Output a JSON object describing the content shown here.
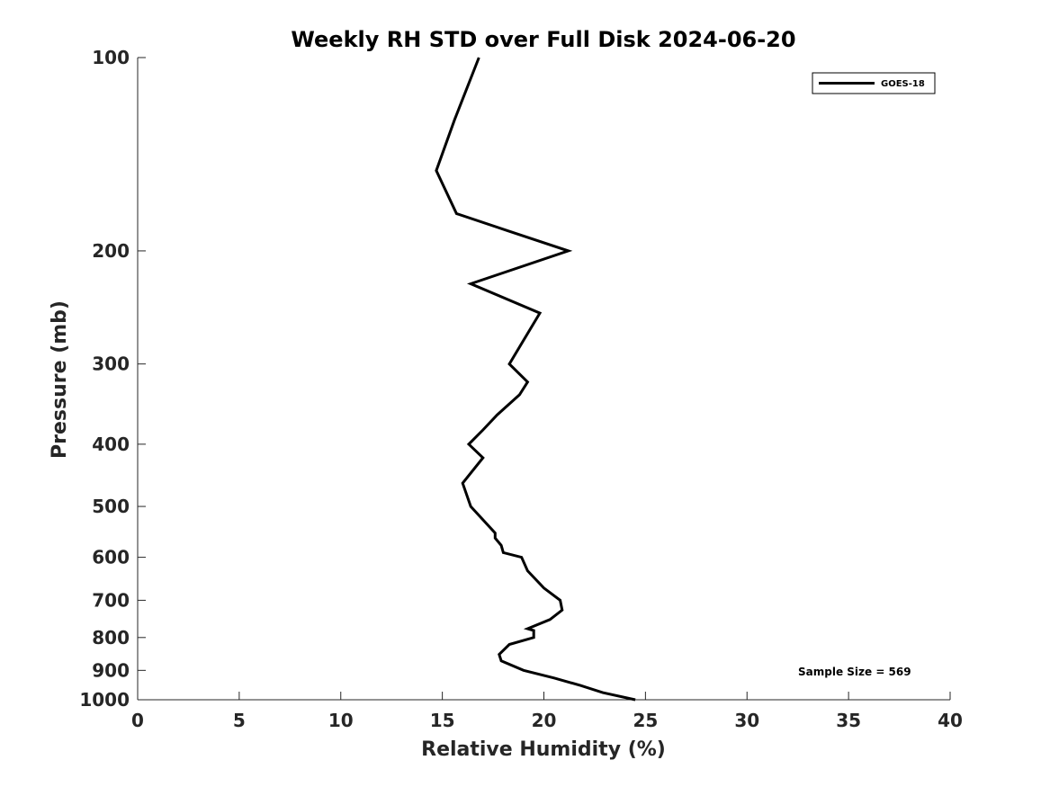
{
  "chart_data": {
    "type": "line",
    "title": "Weekly RH STD over Full Disk 2024-06-20",
    "xlabel": "Relative Humidity (%)",
    "ylabel": "Pressure (mb)",
    "xlim": [
      0,
      40
    ],
    "ylim": [
      100,
      1000
    ],
    "yscale": "log",
    "y_reversed": true,
    "grid": false,
    "xticks": [
      0,
      5,
      10,
      15,
      20,
      25,
      30,
      35,
      40
    ],
    "xtick_labels": [
      "0",
      "5",
      "10",
      "15",
      "20",
      "25",
      "30",
      "35",
      "40"
    ],
    "yticks": [
      100,
      200,
      300,
      400,
      500,
      600,
      700,
      800,
      900,
      1000
    ],
    "ytick_labels": [
      "100",
      "200",
      "300",
      "400",
      "500",
      "600",
      "700",
      "800",
      "900",
      "1000"
    ],
    "legend": {
      "position": "top-right",
      "entries": [
        "GOES-18"
      ]
    },
    "annotation": "Sample Size = 569",
    "series": [
      {
        "name": "GOES-18",
        "color": "#000000",
        "points": [
          {
            "rh": 16.8,
            "p": 100
          },
          {
            "rh": 15.6,
            "p": 125
          },
          {
            "rh": 14.7,
            "p": 150
          },
          {
            "rh": 15.7,
            "p": 175
          },
          {
            "rh": 18.2,
            "p": 186
          },
          {
            "rh": 21.2,
            "p": 200
          },
          {
            "rh": 16.4,
            "p": 225
          },
          {
            "rh": 19.8,
            "p": 250
          },
          {
            "rh": 18.3,
            "p": 300
          },
          {
            "rh": 19.2,
            "p": 320
          },
          {
            "rh": 18.8,
            "p": 335
          },
          {
            "rh": 17.7,
            "p": 360
          },
          {
            "rh": 17.0,
            "p": 380
          },
          {
            "rh": 16.3,
            "p": 400
          },
          {
            "rh": 17.0,
            "p": 420
          },
          {
            "rh": 16.0,
            "p": 460
          },
          {
            "rh": 16.4,
            "p": 500
          },
          {
            "rh": 17.6,
            "p": 550
          },
          {
            "rh": 17.6,
            "p": 560
          },
          {
            "rh": 17.9,
            "p": 575
          },
          {
            "rh": 18.0,
            "p": 590
          },
          {
            "rh": 18.9,
            "p": 600
          },
          {
            "rh": 19.2,
            "p": 630
          },
          {
            "rh": 20.0,
            "p": 670
          },
          {
            "rh": 20.8,
            "p": 700
          },
          {
            "rh": 20.9,
            "p": 725
          },
          {
            "rh": 20.3,
            "p": 750
          },
          {
            "rh": 19.2,
            "p": 775
          },
          {
            "rh": 19.5,
            "p": 780
          },
          {
            "rh": 19.5,
            "p": 800
          },
          {
            "rh": 18.3,
            "p": 820
          },
          {
            "rh": 17.8,
            "p": 850
          },
          {
            "rh": 17.9,
            "p": 870
          },
          {
            "rh": 19.0,
            "p": 900
          },
          {
            "rh": 20.5,
            "p": 925
          },
          {
            "rh": 21.8,
            "p": 950
          },
          {
            "rh": 22.9,
            "p": 975
          },
          {
            "rh": 24.5,
            "p": 1000
          }
        ]
      }
    ]
  }
}
